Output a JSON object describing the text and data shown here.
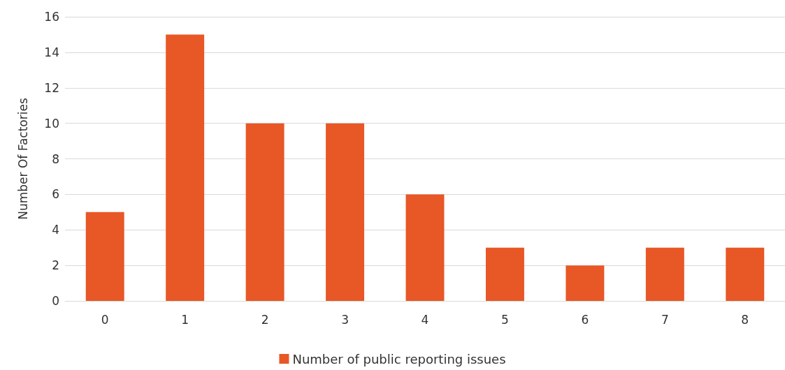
{
  "chart_data": {
    "type": "bar",
    "ylabel": "Number Of Factories",
    "categories": [
      "0",
      "1",
      "2",
      "3",
      "4",
      "5",
      "6",
      "7",
      "8"
    ],
    "series": [
      {
        "name": "Number of public reporting issues",
        "color": "#e85726",
        "values": [
          5,
          15,
          10,
          10,
          6,
          3,
          2,
          3,
          3
        ]
      }
    ],
    "ylim": [
      0,
      16
    ],
    "yticks": [
      0,
      2,
      4,
      6,
      8,
      10,
      12,
      14,
      16
    ],
    "grid": "y",
    "legend": "bottom"
  }
}
